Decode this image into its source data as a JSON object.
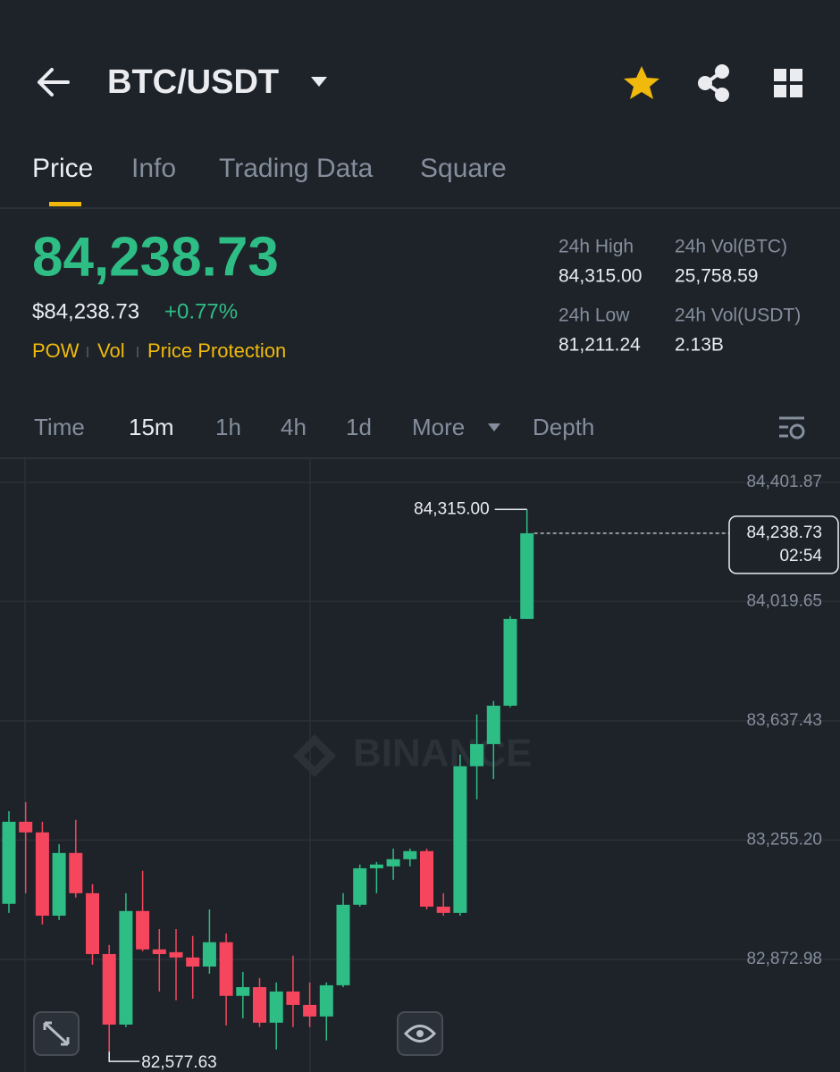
{
  "header": {
    "pair": "BTC/USDT"
  },
  "tabs": [
    "Price",
    "Info",
    "Trading Data",
    "Square"
  ],
  "price": {
    "last": "84,238.73",
    "usd": "$84,238.73",
    "change": "+0.77%",
    "tags": [
      "POW",
      "Vol",
      "Price Protection"
    ]
  },
  "stats": [
    {
      "label": "24h High",
      "value": "84,315.00"
    },
    {
      "label": "24h Vol(BTC)",
      "value": "25,758.59"
    },
    {
      "label": "24h Low",
      "value": "81,211.24"
    },
    {
      "label": "24h Vol(USDT)",
      "value": "2.13B"
    }
  ],
  "intervals": [
    "Time",
    "15m",
    "1h",
    "4h",
    "1d",
    "More",
    "Depth"
  ],
  "chart_data": {
    "type": "candlestick",
    "watermark": "BINANCE",
    "up_color": "#2ebd85",
    "down_color": "#f6465d",
    "ylim": [
      82512,
      84479
    ],
    "yticks": [
      {
        "value": 84401.87,
        "label": "84,401.87"
      },
      {
        "value": 84019.65,
        "label": "84,019.65"
      },
      {
        "value": 83637.43,
        "label": "83,637.43"
      },
      {
        "value": 83255.2,
        "label": "83,255.20"
      },
      {
        "value": 82872.98,
        "label": "82,872.98"
      }
    ],
    "grid": true,
    "open": [
      83051,
      83314,
      83280,
      83013,
      83214,
      83085,
      82890,
      82664,
      83028,
      82905,
      82896,
      82879,
      82850,
      82928,
      82756,
      82784,
      82670,
      82770,
      82727,
      82690,
      82790,
      83048,
      83165,
      83171,
      83194,
      83220,
      83042,
      83022,
      83492,
      83563,
      83686,
      83964
    ],
    "high": [
      83348,
      83377,
      83314,
      83242,
      83320,
      83114,
      82919,
      83085,
      83157,
      82970,
      82970,
      82948,
      83033,
      82956,
      82833,
      82813,
      82799,
      82885,
      82799,
      82799,
      83085,
      83177,
      83185,
      83228,
      83228,
      83228,
      83085,
      83529,
      83658,
      83701,
      83973,
      84315
    ],
    "low": [
      83022,
      83085,
      82985,
      82999,
      83071,
      82856,
      82577.63,
      82656,
      82899,
      82770,
      82742,
      82747,
      82827,
      82661,
      82684,
      82656,
      82584,
      82656,
      82656,
      82613,
      82784,
      83042,
      83085,
      83128,
      83171,
      83033,
      83013,
      83013,
      83386,
      83451,
      83681,
      83964
    ],
    "close": [
      83314,
      83280,
      83013,
      83214,
      83085,
      82890,
      82664,
      83028,
      82905,
      82890,
      82879,
      82850,
      82928,
      82756,
      82784,
      82670,
      82770,
      82727,
      82690,
      82790,
      83048,
      83165,
      83177,
      83194,
      83220,
      83042,
      83022,
      83492,
      83563,
      83686,
      83964,
      84238.73
    ],
    "high_label": {
      "value": 84315,
      "label": "84,315.00"
    },
    "low_label": {
      "value": 82577.63,
      "label": "82,577.63"
    },
    "last_label": {
      "value": 84238.73,
      "label": "84,238.73",
      "time": "02:54"
    }
  }
}
